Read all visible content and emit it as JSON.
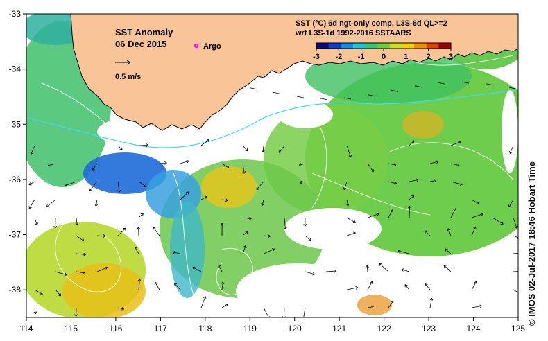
{
  "map": {
    "title_line1": "SST Anomaly",
    "title_line2": "06 Dec 2015",
    "vector_scale_label": "0.5 m/s",
    "argo_label": "Argo",
    "product_line1": "SST (°C) 6d ngt-only comp, L3S-6d QL>=2",
    "product_line2": "wrt L3S-1d 1992-2016 SSTAARS",
    "credit": "© IMOS 02-Jul-2017 18:46 Hobart Time",
    "colorbar": {
      "min": -3,
      "max": 3,
      "tick_labels": [
        "-3",
        "-2",
        "-1",
        "0",
        "1",
        "2",
        "3"
      ],
      "colors": [
        "#08087a",
        "#0a3ec8",
        "#0a8ce8",
        "#18c8d8",
        "#30c878",
        "#6ad040",
        "#c8e020",
        "#f0d000",
        "#f09000",
        "#e04000",
        "#a00000"
      ]
    },
    "x_ticks": [
      "114",
      "115",
      "116",
      "117",
      "118",
      "119",
      "120",
      "121",
      "122",
      "123",
      "124",
      "125"
    ],
    "y_ticks": [
      "-33",
      "-34",
      "-35",
      "-36",
      "-37",
      "-38"
    ],
    "lon_range": [
      114,
      125
    ],
    "lat_range": [
      -38.5,
      -33
    ],
    "colors": {
      "land": "#f9c598",
      "coastline": "#000000",
      "argo_marker": "#ff00ff",
      "contour": "#ffffff",
      "shelf_contour": "#40d8ff"
    }
  }
}
